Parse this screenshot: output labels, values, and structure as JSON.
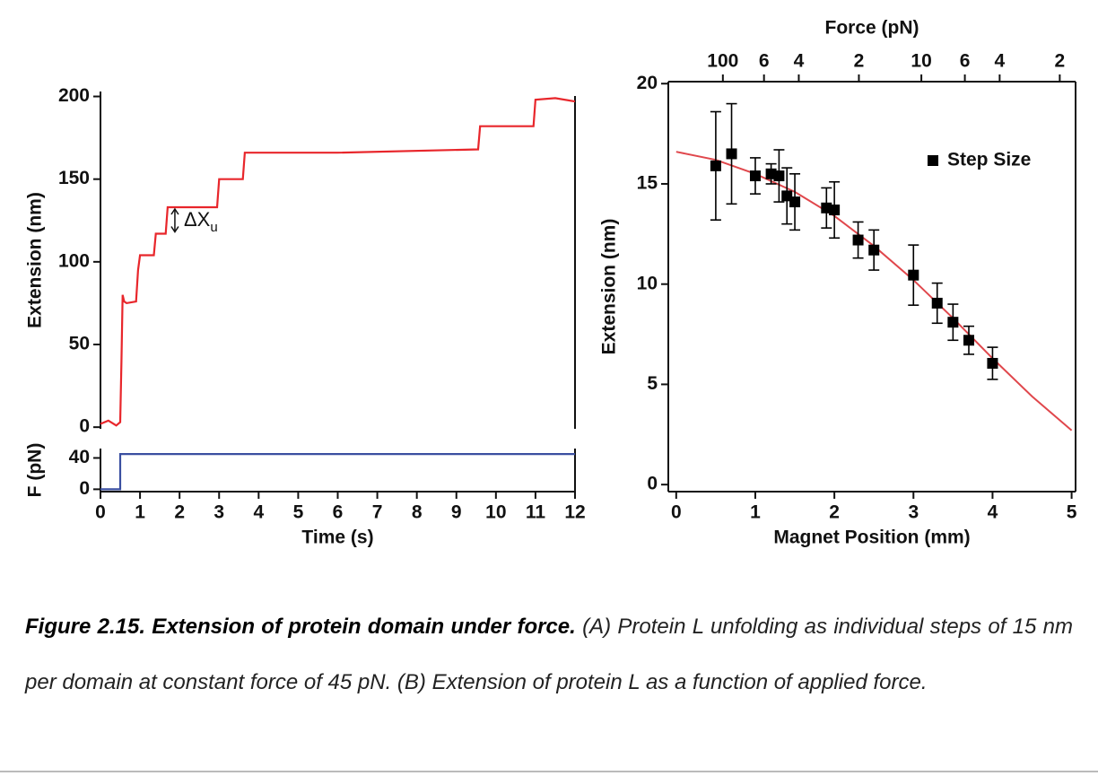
{
  "chart_data": [
    {
      "type": "line",
      "x": [
        0,
        0.2,
        0.4,
        0.5,
        0.53,
        0.56,
        0.6,
        0.66,
        0.9,
        0.95,
        1.0,
        1.35,
        1.4,
        1.65,
        1.7,
        2.95,
        3.0,
        3.6,
        3.65,
        6,
        9.55,
        9.6,
        10.95,
        11.0,
        11.5,
        12
      ],
      "series": [
        {
          "color": "#e8262b",
          "values": [
            2,
            4,
            1,
            3,
            40,
            80,
            76,
            75,
            76,
            95,
            104,
            104,
            117,
            117,
            133,
            133,
            150,
            150,
            166,
            166,
            168,
            182,
            182,
            198,
            199,
            197
          ]
        }
      ],
      "ylabel": "Extension (nm)",
      "ylim": [
        -1,
        203
      ],
      "yticks": [
        0,
        50,
        100,
        150,
        200
      ],
      "annotation": {
        "text": "ΔX",
        "subscript": "u"
      }
    },
    {
      "type": "line",
      "x": [
        0,
        0.5,
        0.5,
        12
      ],
      "series": [
        {
          "color": "#3a4fa0",
          "values": [
            0,
            0,
            45,
            45
          ]
        }
      ],
      "xlabel": "Time (s)",
      "ylabel": "F (pN)",
      "xlim": [
        0,
        12
      ],
      "xticks": [
        0,
        1,
        2,
        3,
        4,
        5,
        6,
        7,
        8,
        9,
        10,
        11,
        12
      ],
      "ylim": [
        -3,
        52
      ],
      "yticks": [
        0,
        40
      ]
    },
    {
      "type": "scatter",
      "x": [
        0.5,
        0.7,
        1.0,
        1.2,
        1.3,
        1.4,
        1.5,
        1.9,
        2.0,
        2.3,
        2.5,
        3.0,
        3.3,
        3.5,
        3.7,
        4.0
      ],
      "series": [
        {
          "name": "Step Size",
          "color": "#000000",
          "values": [
            15.9,
            16.5,
            15.4,
            15.5,
            15.4,
            14.4,
            14.1,
            13.8,
            13.7,
            12.2,
            11.7,
            10.45,
            9.05,
            8.1,
            7.2,
            6.05
          ],
          "errors": [
            2.7,
            2.5,
            0.9,
            0.5,
            1.3,
            1.4,
            1.4,
            1.0,
            1.4,
            0.9,
            1.0,
            1.5,
            1.0,
            0.9,
            0.7,
            0.8
          ]
        }
      ],
      "fit": {
        "color": "#e0474c",
        "x": [
          0,
          0.5,
          1,
          1.5,
          2,
          2.5,
          3,
          3.5,
          4,
          4.5,
          5
        ],
        "values": [
          16.6,
          16.2,
          15.5,
          14.6,
          13.4,
          11.9,
          10.2,
          8.3,
          6.3,
          4.4,
          2.7
        ]
      },
      "xlabel": "Magnet Position (mm)",
      "ylabel": "Extension (nm)",
      "x2label": "Force (pN)",
      "xlim": [
        -0.1,
        5.05
      ],
      "xticks": [
        0,
        1,
        2,
        3,
        4,
        5
      ],
      "ylim": [
        -0.35,
        20.1
      ],
      "yticks": [
        0,
        5,
        10,
        15,
        20
      ],
      "x2ticks": [
        {
          "value": 0.59,
          "label": "100"
        },
        {
          "value": 1.11,
          "label": "6"
        },
        {
          "value": 1.55,
          "label": "4"
        },
        {
          "value": 2.31,
          "label": "2"
        },
        {
          "value": 3.1,
          "label": "10"
        },
        {
          "value": 3.65,
          "label": "6"
        },
        {
          "value": 4.09,
          "label": "4"
        },
        {
          "value": 4.85,
          "label": "2"
        }
      ],
      "legend": "upper right"
    }
  ],
  "caption": {
    "label": "Figure 2.15.  Extension of protein domain under force.",
    "text": "(A) Protein L unfolding as individual steps of 15 nm per domain at constant force of 45 pN. (B) Extension of protein L as a function of applied force."
  }
}
